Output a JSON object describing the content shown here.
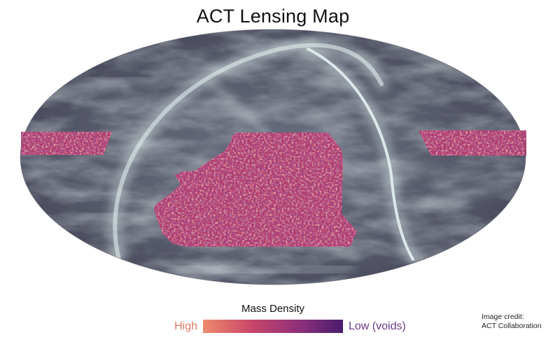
{
  "title": "ACT Lensing Map",
  "legend": {
    "title": "Mass Density",
    "high_label": "High",
    "low_label": "Low (voids)",
    "gradient_colors": [
      "#ee8a6c",
      "#c8466a",
      "#8b2f7a",
      "#4a1c6e"
    ]
  },
  "credit": {
    "label": "Image credit:",
    "name": "ACT Collaboration"
  },
  "colors": {
    "sky_dark": "#454558",
    "sky_light": "#c9dcdc",
    "lensing_base": "#b03868"
  }
}
